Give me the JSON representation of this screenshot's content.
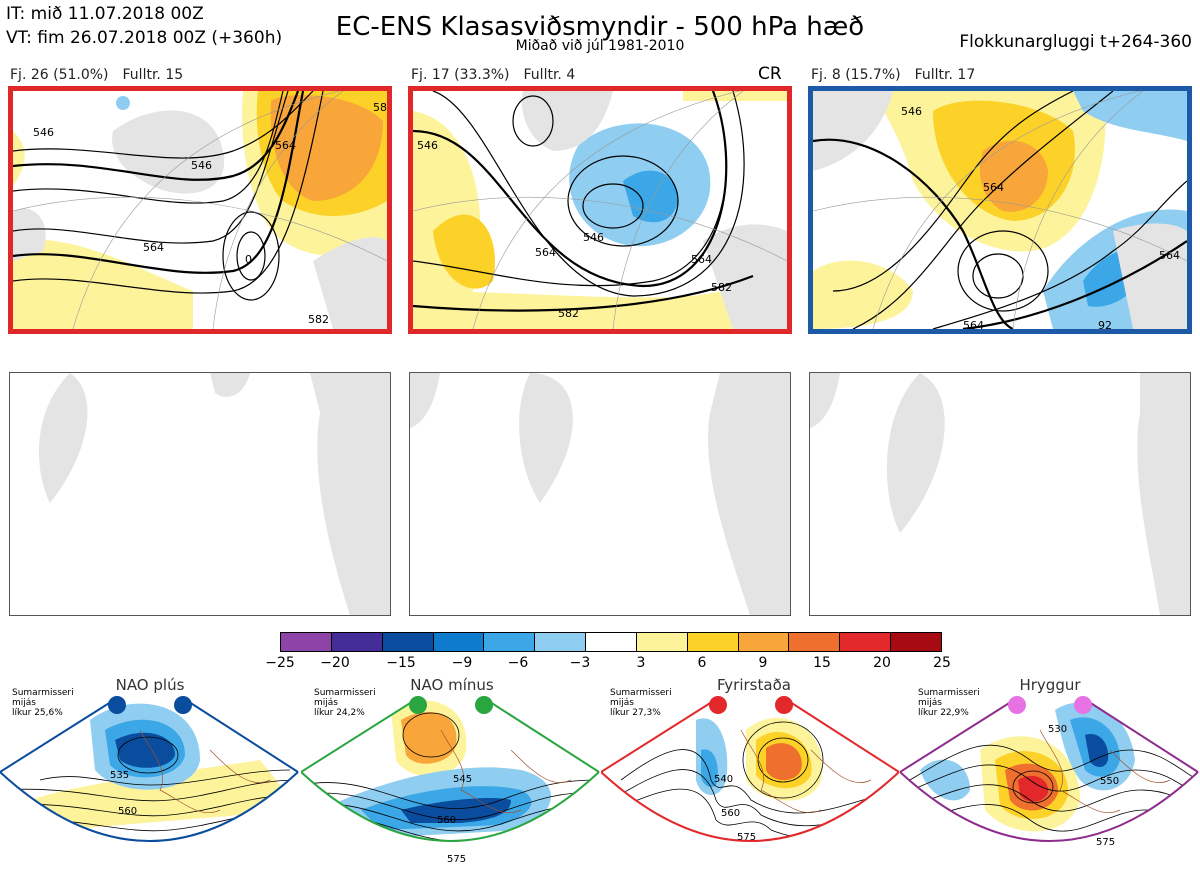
{
  "header": {
    "it": "IT: mið 11.07.2018 00Z",
    "vt": "VT: fim 26.07.2018 00Z  (+360h)",
    "title": "EC-ENS Klasasviðsmyndir - 500 hPa hæð",
    "subtitle": "Miðað við júl 1981-2010",
    "window": "Flokkunargluggi t+264-360"
  },
  "clusters": [
    {
      "fj": "Fj. 26 (51.0%)",
      "rep": "Fulltr. 15",
      "border": "#e0282a",
      "contours": [
        "546",
        "546",
        "564",
        "564",
        "0",
        "582",
        "58"
      ]
    },
    {
      "fj": "Fj. 17 (33.3%)",
      "rep": "Fulltr. 4",
      "badge": "CR",
      "border": "#e0282a",
      "contours": [
        "546",
        "564",
        "564",
        "582",
        "582",
        "546"
      ]
    },
    {
      "fj": "Fj. 8 (15.7%)",
      "rep": "Fulltr. 17",
      "border": "#1c5aa8",
      "contours": [
        "546",
        "564",
        "564",
        "564",
        "92"
      ]
    }
  ],
  "colorbar": {
    "ticks": [
      "−25",
      "−20",
      "−15",
      "−9",
      "−6",
      "−3",
      "3",
      "6",
      "9",
      "15",
      "20",
      "25"
    ],
    "colors": [
      "#8e44a6",
      "#452d97",
      "#0a4c9e",
      "#0e7bcf",
      "#3ba7e6",
      "#8fcdf1",
      "#ffffff",
      "#fdf39b",
      "#fdd228",
      "#f8a53a",
      "#ef6f2e",
      "#e3282b",
      "#a70b11"
    ]
  },
  "regimes": [
    {
      "name": "NAO plús",
      "stat": [
        "Sumarmisseri",
        "mijás",
        "líkur 25,6%"
      ],
      "color": "#0a4c9e",
      "dot": "#0a4c9e",
      "contours": [
        "535",
        "560"
      ]
    },
    {
      "name": "NAO mínus",
      "stat": [
        "Sumarmisseri",
        "mijás",
        "líkur 24,2%"
      ],
      "color": "#2aa641",
      "dot": "#2aa641",
      "contours": [
        "545",
        "560",
        "575"
      ]
    },
    {
      "name": "Fyrirstaða",
      "stat": [
        "Sumarmisseri",
        "mijás",
        "líkur 27,3%"
      ],
      "color": "#e3282b",
      "dot": "#e3282b",
      "contours": [
        "540",
        "560",
        "575"
      ]
    },
    {
      "name": "Hryggur",
      "stat": [
        "Sumarmisseri",
        "mijás",
        "líkur 22,9%"
      ],
      "color": "#8e2c8e",
      "dot": "#e772e3",
      "contours": [
        "530",
        "550",
        "575"
      ]
    }
  ]
}
